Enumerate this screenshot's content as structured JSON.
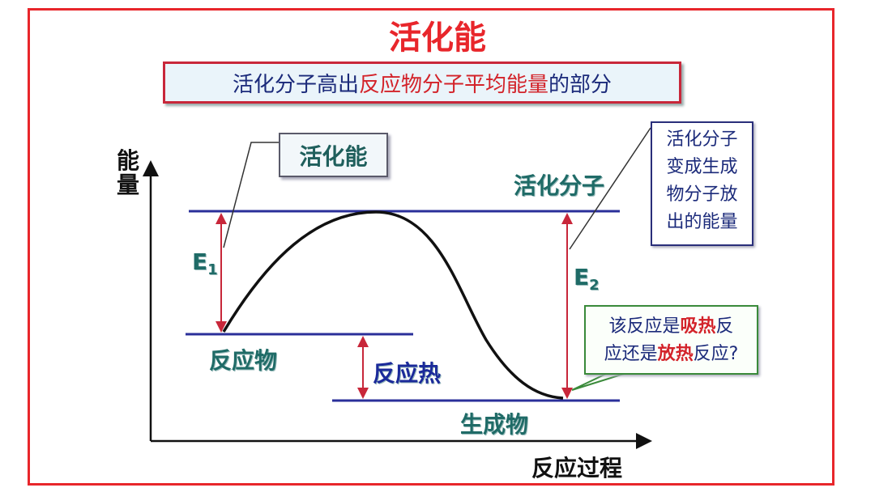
{
  "title": "活化能",
  "subtitle": {
    "part1": "活化分子高出",
    "part2": "反应物分子平均能量",
    "part3": "的部分"
  },
  "activation_box": "活化能",
  "release_box": {
    "line1": "活化分子",
    "line2": "变成生成",
    "line3": "物分子放",
    "line4": "出的能量"
  },
  "question_box": {
    "line1_a": "该反应是",
    "line1_b": "吸热",
    "line1_c": "反",
    "line2_a": "应还是",
    "line2_b": "放热",
    "line2_c": "反应?"
  },
  "axis": {
    "y_label_1": "能",
    "y_label_2": "量",
    "x_label": "反应过程"
  },
  "levels": {
    "activated": "活化分子",
    "reactant": "反应物",
    "product": "生成物",
    "heat": "反应热"
  },
  "e1": {
    "letter": "E",
    "sub": "1"
  },
  "e2": {
    "letter": "E",
    "sub": "2"
  },
  "colors": {
    "frame": "#e8262b",
    "level_line": "#2a2f9a",
    "arrow": "#c8273a",
    "curve": "#111111"
  }
}
